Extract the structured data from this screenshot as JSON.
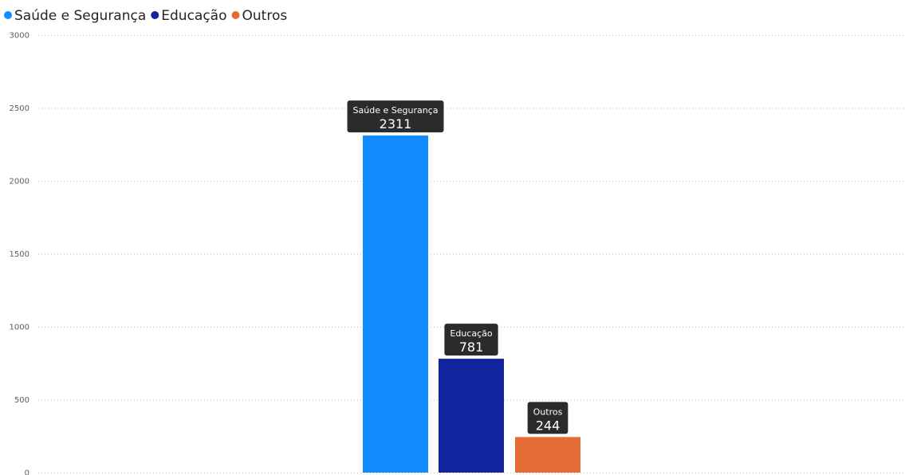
{
  "chart_data": {
    "type": "bar",
    "categories": [
      "Saúde e Segurança",
      "Educação",
      "Outros"
    ],
    "values": [
      2311,
      781,
      244
    ],
    "colors": [
      "#118dff",
      "#12239e",
      "#e66c37"
    ],
    "legend": {
      "placement": "top-left",
      "entries": [
        {
          "name": "Saúde e Segurança",
          "color": "#118dff"
        },
        {
          "name": "Educação",
          "color": "#12239e"
        },
        {
          "name": "Outros",
          "color": "#e66c37"
        }
      ]
    },
    "y_ticks": [
      "0",
      "500",
      "1000",
      "1500",
      "2000",
      "2500",
      "3000"
    ],
    "ylim": [
      0,
      3000
    ],
    "grid": true,
    "data_labels": [
      {
        "name": "Saúde e Segurança",
        "value": "2311"
      },
      {
        "name": "Educação",
        "value": "781"
      },
      {
        "name": "Outros",
        "value": "244"
      }
    ],
    "title": "",
    "xlabel": "",
    "ylabel": ""
  }
}
